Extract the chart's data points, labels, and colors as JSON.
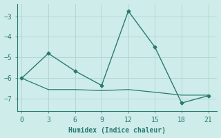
{
  "line1_x": [
    0,
    3,
    6,
    9,
    12,
    15,
    18,
    21
  ],
  "line1_y": [
    -6.0,
    -4.8,
    -5.65,
    -6.35,
    -2.75,
    -4.5,
    -7.2,
    -6.85
  ],
  "line2_x": [
    0,
    3,
    6,
    9,
    12,
    15,
    18,
    21
  ],
  "line2_y": [
    -6.0,
    -6.55,
    -6.55,
    -6.6,
    -6.55,
    -6.68,
    -6.82,
    -6.82
  ],
  "xlabel": "Humidex (Indice chaleur)",
  "xlim": [
    -0.5,
    22
  ],
  "ylim": [
    -7.6,
    -2.4
  ],
  "yticks": [
    -7,
    -6,
    -5,
    -4,
    -3
  ],
  "xticks": [
    0,
    3,
    6,
    9,
    12,
    15,
    18,
    21
  ],
  "line_color": "#2a7a6e",
  "bg_color": "#ceecea",
  "grid_color": "#b2d8d4",
  "spine_color": "#2a7a6e",
  "tick_color": "#2a7a6e",
  "label_color": "#2a7a6e"
}
